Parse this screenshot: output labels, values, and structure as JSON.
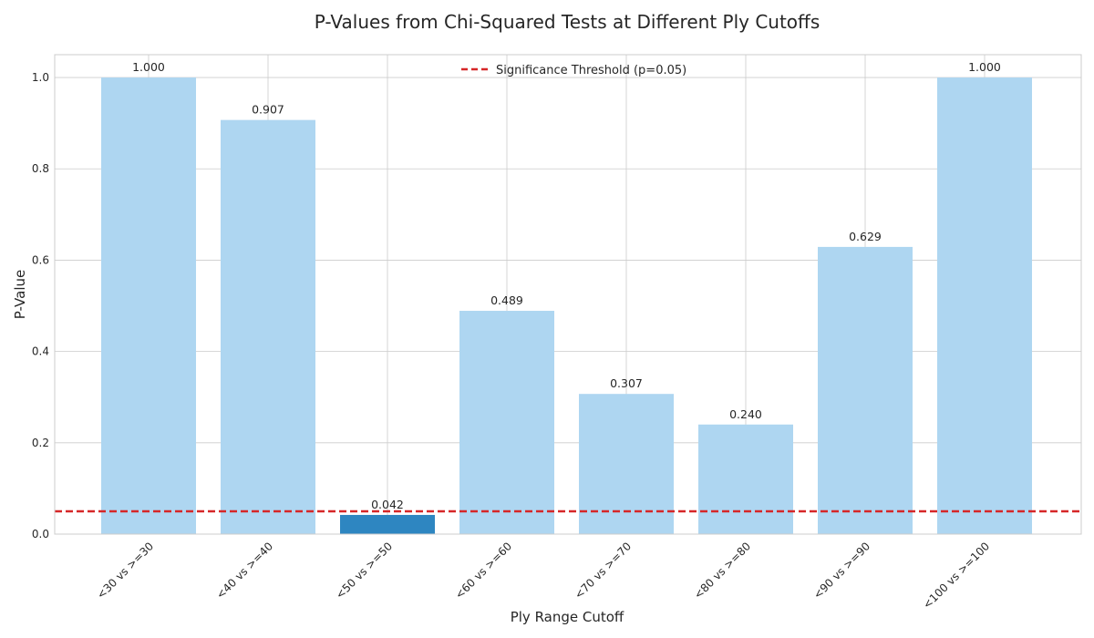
{
  "chart_data": {
    "type": "bar",
    "title": "P-Values from Chi-Squared Tests at Different Ply Cutoffs",
    "xlabel": "Ply Range Cutoff",
    "ylabel": "P-Value",
    "categories": [
      "<30 vs >=30",
      "<40 vs >=40",
      "<50 vs >=50",
      "<60 vs >=60",
      "<70 vs >=70",
      "<80 vs >=80",
      "<90 vs >=90",
      "<100 vs >=100"
    ],
    "values": [
      1.0,
      0.907,
      0.042,
      0.489,
      0.307,
      0.24,
      0.629,
      1.0
    ],
    "value_labels": [
      "1.000",
      "0.907",
      "0.042",
      "0.489",
      "0.307",
      "0.240",
      "0.629",
      "1.000"
    ],
    "ylim": [
      0,
      1.05
    ],
    "yticks": [
      0.0,
      0.2,
      0.4,
      0.6,
      0.8,
      1.0
    ],
    "ytick_labels": [
      "0.0",
      "0.2",
      "0.4",
      "0.6",
      "0.8",
      "1.0"
    ],
    "threshold": {
      "value": 0.05,
      "label": "Significance Threshold (p=0.05)",
      "color": "#d62728"
    },
    "colors": {
      "bar": "#aed6f1",
      "bar_significant": "#2e86c1",
      "grid": "#cccccc",
      "axis": "#cccccc",
      "text": "#262626"
    },
    "grid": true,
    "legend_position": "top-center"
  }
}
